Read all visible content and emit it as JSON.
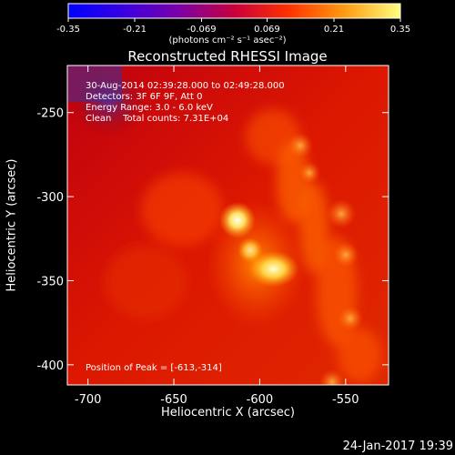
{
  "chart_data": {
    "type": "heatmap",
    "title": "Reconstructed RHESSI Image",
    "colorbar": {
      "ticks": [
        "-0.35",
        "-0.21",
        "-0.069",
        "0.069",
        "0.21",
        "0.35"
      ],
      "range": [
        -0.35,
        0.35
      ],
      "unit_label": "(photons cm⁻² s⁻¹ asec⁻²)"
    },
    "xlabel": "Heliocentric X (arcsec)",
    "ylabel": "Heliocentric Y (arcsec)",
    "xlim": [
      -712,
      -525
    ],
    "ylim": [
      -412,
      -222
    ],
    "x_ticks": [
      "-700",
      "-650",
      "-600",
      "-550"
    ],
    "x_tick_values": [
      -700,
      -650,
      -600,
      -550
    ],
    "y_ticks": [
      "-250",
      "-300",
      "-350",
      "-400"
    ],
    "y_tick_values": [
      -250,
      -300,
      -350,
      -400
    ],
    "annotations": [
      "30-Aug-2014 02:39:28.000 to 02:49:28.000",
      "Detectors: 3F 6F 9F, Att 0",
      "Energy Range: 3.0 - 6.0 keV",
      "Clean    Total counts: 7.31E+04"
    ],
    "peak_label": "Position of Peak = [-613,-314]",
    "peak_position": [
      -613,
      -314
    ],
    "secondary_peak": [
      -592,
      -343
    ]
  },
  "footer": {
    "timestamp": "24-Jan-2017 19:39"
  }
}
